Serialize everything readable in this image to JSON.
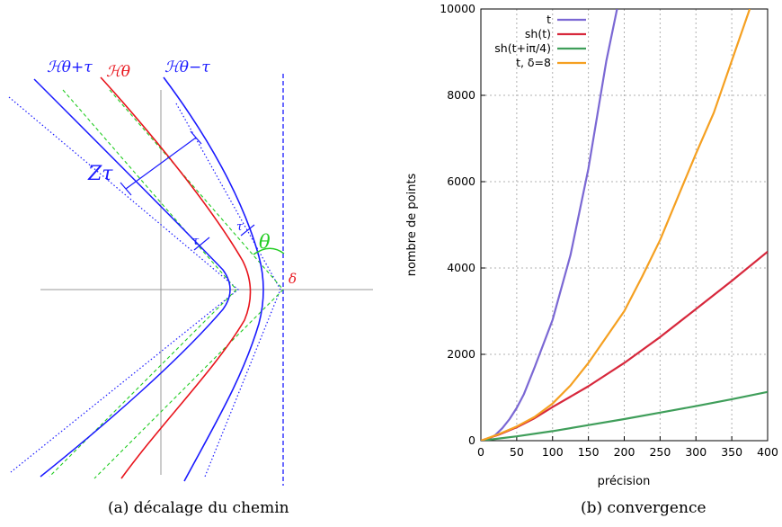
{
  "captions": {
    "left": "(a) décalage du chemin",
    "right": "(b) convergence"
  },
  "diagram": {
    "labels": {
      "h_plus": "ℋθ+τ",
      "h_mid": "ℋθ",
      "h_minus": "ℋθ−τ",
      "z_tau": "Zτ",
      "theta": "θ",
      "delta": "δ",
      "tau_1": "τ",
      "tau_2": "τ"
    },
    "colors": {
      "blue": "#1a1aff",
      "red": "#e8141c",
      "green": "#22cc22",
      "axis": "#999999"
    }
  },
  "chart_data": {
    "type": "line",
    "title": "",
    "xlabel": "précision",
    "ylabel": "nombre de points",
    "xlim": [
      0,
      400
    ],
    "ylim": [
      0,
      10000
    ],
    "xticks": [
      0,
      50,
      100,
      150,
      200,
      250,
      300,
      350,
      400
    ],
    "yticks": [
      0,
      2000,
      4000,
      6000,
      8000,
      10000
    ],
    "grid": true,
    "legend_position": "top-left",
    "series": [
      {
        "name": "t",
        "color": "#7b68d4",
        "points": [
          [
            0,
            0
          ],
          [
            10,
            40
          ],
          [
            20,
            130
          ],
          [
            30,
            290
          ],
          [
            40,
            500
          ],
          [
            50,
            760
          ],
          [
            60,
            1080
          ],
          [
            75,
            1700
          ],
          [
            100,
            2800
          ],
          [
            125,
            4300
          ],
          [
            150,
            6300
          ],
          [
            175,
            8800
          ],
          [
            190,
            10000
          ]
        ]
      },
      {
        "name": "sh(t)",
        "color": "#d7283c",
        "points": [
          [
            0,
            0
          ],
          [
            25,
            140
          ],
          [
            50,
            310
          ],
          [
            75,
            520
          ],
          [
            100,
            780
          ],
          [
            150,
            1260
          ],
          [
            200,
            1800
          ],
          [
            250,
            2400
          ],
          [
            300,
            3050
          ],
          [
            350,
            3700
          ],
          [
            400,
            4380
          ]
        ]
      },
      {
        "name": "sh(t+iπ/4)",
        "color": "#3f9e5a",
        "points": [
          [
            0,
            0
          ],
          [
            25,
            50
          ],
          [
            50,
            100
          ],
          [
            100,
            220
          ],
          [
            150,
            360
          ],
          [
            200,
            500
          ],
          [
            250,
            650
          ],
          [
            300,
            800
          ],
          [
            350,
            960
          ],
          [
            400,
            1130
          ]
        ]
      },
      {
        "name": "t, δ=8",
        "color": "#f5a021",
        "points": [
          [
            0,
            0
          ],
          [
            25,
            150
          ],
          [
            50,
            330
          ],
          [
            75,
            550
          ],
          [
            100,
            860
          ],
          [
            125,
            1280
          ],
          [
            150,
            1800
          ],
          [
            175,
            2400
          ],
          [
            200,
            3000
          ],
          [
            225,
            3800
          ],
          [
            250,
            4650
          ],
          [
            275,
            5650
          ],
          [
            300,
            6650
          ],
          [
            325,
            7600
          ],
          [
            350,
            8800
          ],
          [
            375,
            10000
          ]
        ]
      }
    ]
  }
}
